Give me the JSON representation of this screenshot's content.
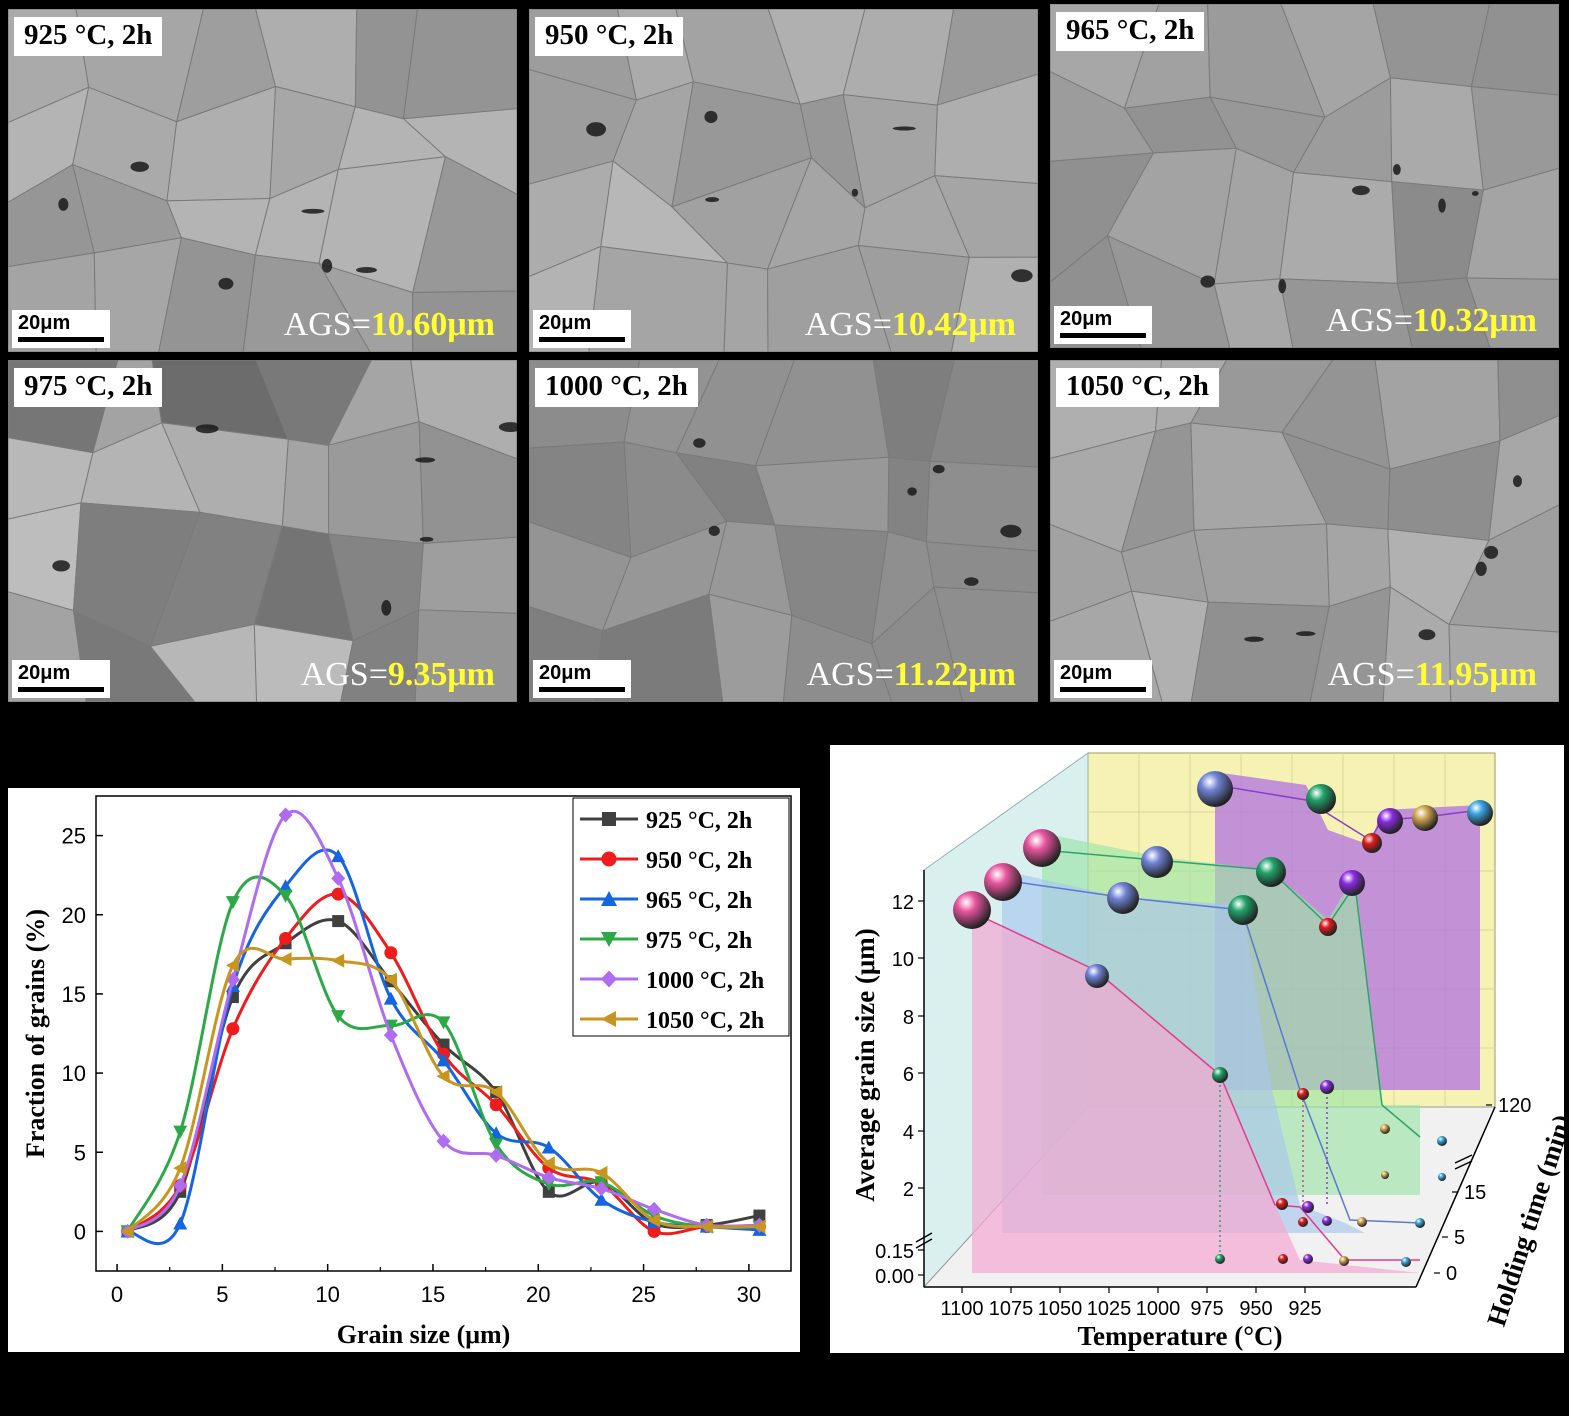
{
  "micrographs": [
    {
      "title": "925 °C, 2h",
      "scale": "20μm",
      "ags_label": "AGS=",
      "ags_value": "10.60μm",
      "tone": "#a4a4a4",
      "seed": 3
    },
    {
      "title": "950 °C, 2h",
      "scale": "20μm",
      "ags_label": "AGS=",
      "ags_value": "10.42μm",
      "tone": "#a7a7a7",
      "seed": 7
    },
    {
      "title": "965 °C, 2h",
      "scale": "20μm",
      "ags_label": "AGS=",
      "ags_value": "10.32μm",
      "tone": "#9c9c9c",
      "seed": 11
    },
    {
      "title": "975 °C, 2h",
      "scale": "20μm",
      "ags_label": "AGS=",
      "ags_value": "9.35μm",
      "tone": "#929292",
      "seed": 17
    },
    {
      "title": "1000 °C, 2h",
      "scale": "20μm",
      "ags_label": "AGS=",
      "ags_value": "11.22μm",
      "tone": "#8a8a8a",
      "seed": 23
    },
    {
      "title": "1050 °C, 2h",
      "scale": "20μm",
      "ags_label": "AGS=",
      "ags_value": "11.95μm",
      "tone": "#a0a0a0",
      "seed": 29
    }
  ],
  "chart_data": [
    {
      "type": "line",
      "xlabel": "Grain size (μm)",
      "ylabel": "Fraction of grains (%)",
      "xlim": [
        -1,
        32
      ],
      "ylim": [
        -2.5,
        27.5
      ],
      "xticks": [
        0,
        5,
        10,
        15,
        20,
        25,
        30
      ],
      "yticks": [
        0,
        5,
        10,
        15,
        20,
        25
      ],
      "legend_position": "top-right",
      "series": [
        {
          "name": "925 °C, 2h",
          "marker": "square",
          "color": "#404040",
          "x": [
            0.5,
            3,
            5.5,
            8,
            10.5,
            13,
            15.5,
            18,
            20.5,
            23,
            25.5,
            28,
            30.5
          ],
          "y": [
            0,
            2.5,
            14.8,
            18.2,
            19.6,
            15.8,
            11.8,
            8.8,
            2.5,
            3.1,
            0.5,
            0.4,
            1.0
          ]
        },
        {
          "name": "950 °C, 2h",
          "marker": "circle",
          "color": "#ee1c1c",
          "x": [
            0.5,
            3,
            5.5,
            8,
            10.5,
            13,
            15.5,
            18,
            20.5,
            23,
            25.5,
            28,
            30.5
          ],
          "y": [
            0,
            2.9,
            12.8,
            18.5,
            21.3,
            17.6,
            11.2,
            8.0,
            4.0,
            3.0,
            0.0,
            0.3,
            0.3
          ]
        },
        {
          "name": "965 °C, 2h",
          "marker": "triangle-up",
          "color": "#1565e0",
          "x": [
            0.5,
            3,
            5.5,
            8,
            10.5,
            13,
            15.5,
            18,
            20.5,
            23,
            25.5,
            28,
            30.5
          ],
          "y": [
            0,
            0.5,
            15.5,
            21.8,
            23.7,
            14.7,
            10.8,
            6.2,
            5.3,
            2.0,
            0.6,
            0.3,
            0.1
          ]
        },
        {
          "name": "975 °C, 2h",
          "marker": "triangle-down",
          "color": "#2ca846",
          "x": [
            0.5,
            3,
            5.5,
            8,
            10.5,
            13,
            15.5,
            18,
            20.5,
            23,
            25.5,
            28,
            30.5
          ],
          "y": [
            0,
            6.3,
            20.8,
            21.2,
            13.6,
            13.0,
            13.2,
            5.5,
            3.0,
            3.1,
            1.0,
            0.3,
            0.3
          ]
        },
        {
          "name": "1000 °C, 2h",
          "marker": "diamond",
          "color": "#b06cf0",
          "x": [
            0.5,
            3,
            5.5,
            8,
            10.5,
            13,
            15.5,
            18,
            20.5,
            23,
            25.5,
            28,
            30.5
          ],
          "y": [
            0,
            2.9,
            15.9,
            26.3,
            22.3,
            12.4,
            5.7,
            4.8,
            3.4,
            2.7,
            1.4,
            0.4,
            0.4
          ]
        },
        {
          "name": "1050 °C, 2h",
          "marker": "triangle-left",
          "color": "#c8961e",
          "x": [
            0.5,
            3,
            5.5,
            8,
            10.5,
            13,
            15.5,
            18,
            20.5,
            23,
            25.5,
            28,
            30.5
          ],
          "y": [
            0,
            4.0,
            16.8,
            17.2,
            17.1,
            15.9,
            9.8,
            8.8,
            4.3,
            3.7,
            0.7,
            0.3,
            0.3
          ]
        }
      ]
    },
    {
      "type": "scatter3d",
      "xlabel": "Temperature (°C)",
      "ylabel": "Average grain size (μm)",
      "zlabel": "Holding time (min)",
      "xticks": [
        "1100",
        "1075",
        "1050",
        "1025",
        "1000",
        "975",
        "950",
        "925"
      ],
      "yticks": [
        "0.00",
        "0.15",
        "2",
        "4",
        "6",
        "8",
        "10",
        "12"
      ],
      "zticks": [
        "0",
        "5",
        "15",
        "120"
      ],
      "series": [
        {
          "holding_time_min": 0,
          "color": "#ec4a9a",
          "temperature": [
            1000,
            975,
            965,
            950,
            925
          ],
          "grain_size": [
            0.12,
            0.12,
            0.12,
            0.13,
            0.12
          ]
        },
        {
          "holding_time_min": 5,
          "color": "#5b79d0",
          "temperature": [
            975,
            965,
            955,
            950,
            925
          ],
          "grain_size": [
            1.4,
            1.2,
            0.9,
            0.8,
            0.9
          ]
        },
        {
          "holding_time_min": 15,
          "color": "#2ba56b",
          "temperature": [
            950,
            925
          ],
          "grain_size": [
            1.3,
            1.5
          ]
        },
        {
          "holding_time_min": 120,
          "color": "#9c3fd8",
          "temperature": [
            950,
            925
          ],
          "grain_size": [
            4.0,
            3.6
          ]
        },
        {
          "holding_time_min": 120,
          "color": "#9c3fd8",
          "temperature": [
            1100,
            1050,
            1000,
            975,
            965
          ],
          "grain_size": [
            11.6,
            9.4,
            5.9,
            5.3,
            5.5
          ]
        }
      ]
    }
  ]
}
